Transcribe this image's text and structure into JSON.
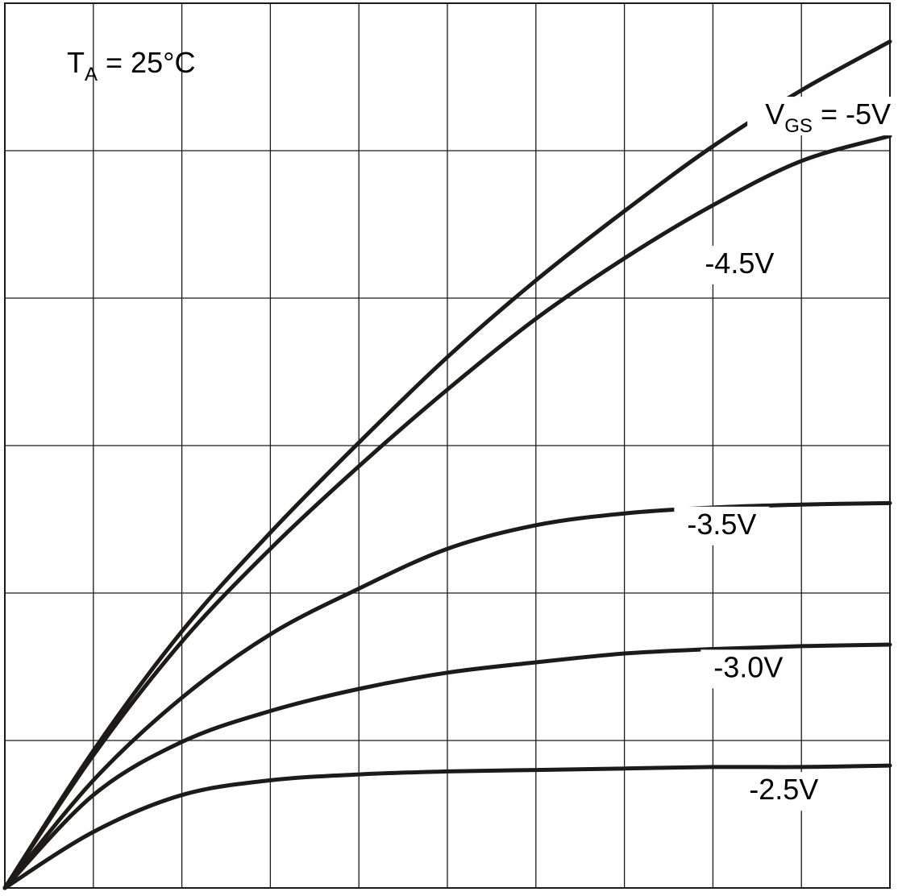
{
  "chart_data": {
    "type": "line",
    "title": "",
    "xlabel": "",
    "ylabel": "",
    "xlim": [
      0,
      10
    ],
    "ylim": [
      0,
      6
    ],
    "grid": true,
    "legend": "inline-right",
    "annotation": {
      "ta_prefix": "T",
      "ta_sub": "A",
      "ta_value": " = 25°C",
      "vgs_prefix": "V",
      "vgs_sub": "GS",
      "vgs_value": " = -5V"
    },
    "series": [
      {
        "name": "-5V",
        "x": [
          0,
          1,
          2,
          3,
          4,
          5,
          6,
          7,
          8,
          9,
          10
        ],
        "y": [
          0,
          0.93,
          1.74,
          2.41,
          3.02,
          3.6,
          4.12,
          4.59,
          5.03,
          5.41,
          5.74
        ]
      },
      {
        "name": "-4.5V",
        "x": [
          0,
          1,
          2,
          3,
          4,
          5,
          6,
          7,
          8,
          9,
          10
        ],
        "y": [
          0,
          0.9,
          1.67,
          2.3,
          2.86,
          3.38,
          3.86,
          4.27,
          4.63,
          4.93,
          5.1
        ]
      },
      {
        "name": "-3.5V",
        "x": [
          0,
          1,
          2,
          3,
          4,
          5,
          6,
          7,
          8,
          9,
          10
        ],
        "y": [
          0,
          0.73,
          1.29,
          1.72,
          2.03,
          2.3,
          2.46,
          2.54,
          2.58,
          2.6,
          2.61
        ]
      },
      {
        "name": "-3.0V",
        "x": [
          0,
          1,
          2,
          3,
          4,
          5,
          6,
          7,
          8,
          9,
          10
        ],
        "y": [
          0,
          0.63,
          0.99,
          1.2,
          1.35,
          1.46,
          1.53,
          1.59,
          1.62,
          1.64,
          1.65
        ]
      },
      {
        "name": "-2.5V",
        "x": [
          0,
          1,
          2,
          3,
          4,
          5,
          6,
          7,
          8,
          9,
          10
        ],
        "y": [
          0,
          0.38,
          0.63,
          0.73,
          0.77,
          0.79,
          0.8,
          0.81,
          0.82,
          0.82,
          0.83
        ]
      }
    ]
  }
}
